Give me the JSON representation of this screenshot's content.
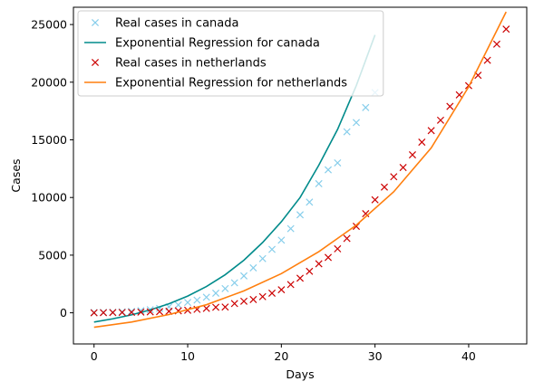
{
  "chart_data": {
    "type": "scatter",
    "xlabel": "Days",
    "ylabel": "Cases",
    "xlim": [
      -2.2,
      46.2
    ],
    "ylim": [
      -2700,
      26500
    ],
    "xticks": [
      0,
      10,
      20,
      30,
      40
    ],
    "yticks": [
      0,
      5000,
      10000,
      15000,
      20000,
      25000
    ],
    "grid": false,
    "legend_position": "top-left",
    "series": [
      {
        "name": "Real cases in canada",
        "kind": "markers",
        "marker": "x",
        "color": "#87ceeb",
        "x": [
          0,
          1,
          2,
          3,
          4,
          5,
          6,
          7,
          8,
          9,
          10,
          11,
          12,
          13,
          14,
          15,
          16,
          17,
          18,
          19,
          20,
          21,
          22,
          23,
          24,
          25,
          26,
          27,
          28,
          29,
          30
        ],
        "y": [
          30,
          40,
          50,
          80,
          120,
          190,
          270,
          380,
          520,
          680,
          900,
          1100,
          1350,
          1700,
          2100,
          2600,
          3200,
          3900,
          4700,
          5500,
          6300,
          7300,
          8500,
          9600,
          11200,
          12400,
          13000,
          15700,
          16500,
          17800,
          19100
        ]
      },
      {
        "name": "Exponential Regression for canada",
        "kind": "line",
        "color": "#008b8b",
        "x": [
          0,
          2,
          4,
          6,
          8,
          10,
          12,
          14,
          16,
          18,
          20,
          22,
          24,
          26,
          28,
          30
        ],
        "y": [
          -800,
          -520,
          -180,
          250,
          780,
          1450,
          2280,
          3300,
          4560,
          6100,
          7900,
          10000,
          12800,
          15900,
          19700,
          24100
        ]
      },
      {
        "name": "Real cases in netherlands",
        "kind": "markers",
        "marker": "x",
        "color": "#cc0000",
        "x": [
          0,
          1,
          2,
          3,
          4,
          5,
          6,
          7,
          8,
          9,
          10,
          11,
          12,
          13,
          14,
          15,
          16,
          17,
          18,
          19,
          20,
          21,
          22,
          23,
          24,
          25,
          26,
          27,
          28,
          29,
          30,
          31,
          32,
          33,
          34,
          35,
          36,
          37,
          38,
          39,
          40,
          41,
          42,
          43,
          44
        ],
        "y": [
          0,
          10,
          20,
          30,
          40,
          60,
          80,
          100,
          130,
          170,
          220,
          300,
          380,
          480,
          500,
          800,
          1000,
          1150,
          1400,
          1700,
          2000,
          2450,
          3000,
          3600,
          4250,
          4800,
          5550,
          6450,
          7500,
          8600,
          9800,
          10900,
          11800,
          12600,
          13700,
          14800,
          15800,
          16700,
          17900,
          18900,
          19700,
          20600,
          21900,
          23300,
          24600
        ]
      },
      {
        "name": "Exponential Regression for netherlands",
        "kind": "line",
        "color": "#ff7f0e",
        "x": [
          0,
          4,
          8,
          12,
          16,
          20,
          24,
          28,
          32,
          36,
          40,
          44
        ],
        "y": [
          -1250,
          -800,
          -150,
          700,
          1900,
          3400,
          5300,
          7600,
          10500,
          14300,
          19600,
          26100
        ]
      }
    ]
  }
}
